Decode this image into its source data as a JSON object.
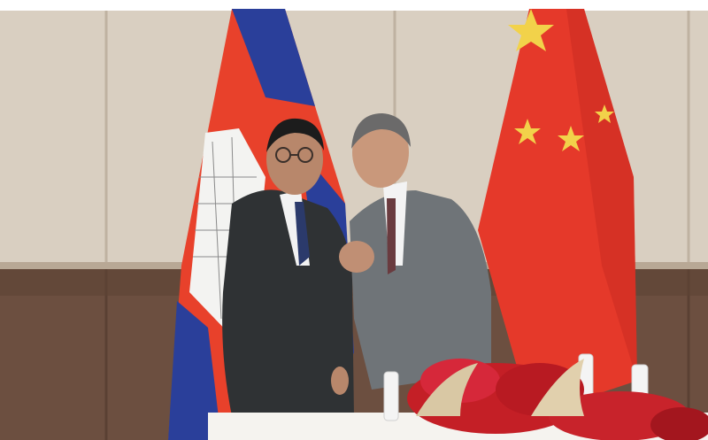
{
  "scene": {
    "subjects": [
      "man-left",
      "man-right"
    ],
    "flags": [
      "cambodia-flag",
      "china-flag"
    ],
    "colors": {
      "wall_panel": "#d8cdbf",
      "wainscot": "#6e5142",
      "suit_left": "#2f3234",
      "suit_right": "#6f7478",
      "flag_red": "#e8412b",
      "flag_blue": "#2a3f9a",
      "star_yellow": "#f2d24a",
      "flowers_red": "#c41f26",
      "table_white": "#f5f3ef"
    }
  }
}
